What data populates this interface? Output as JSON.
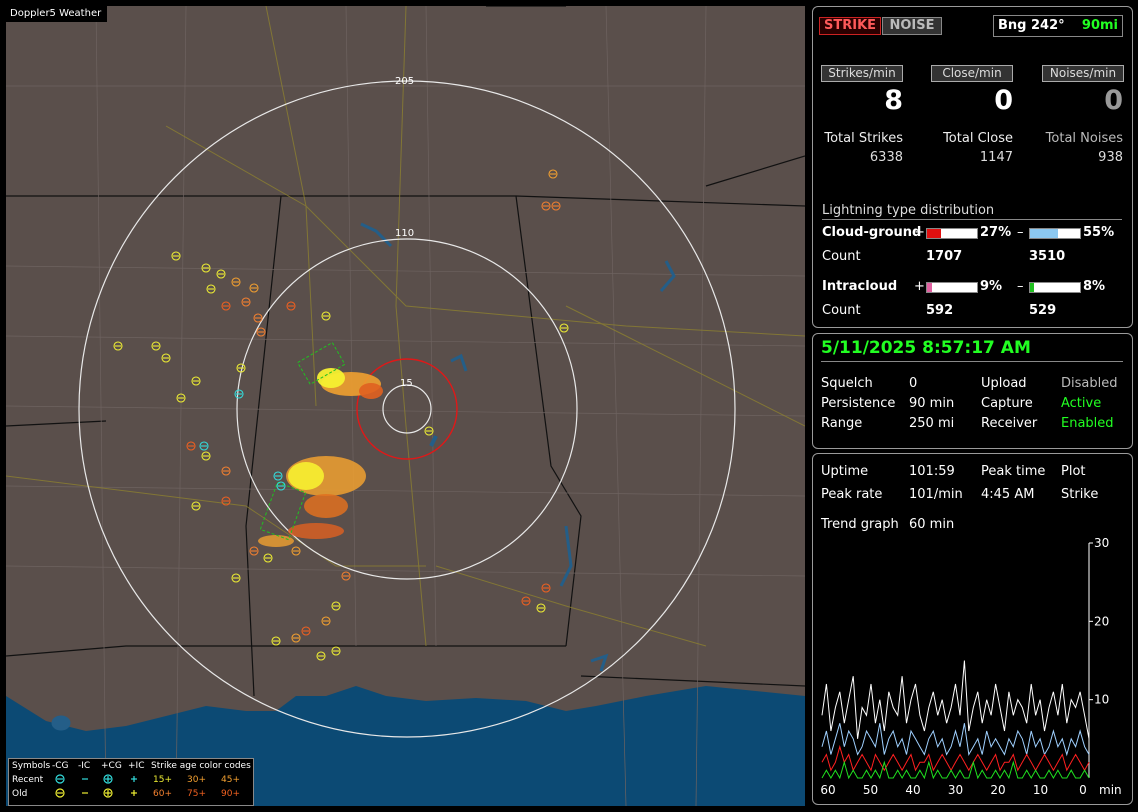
{
  "app": {
    "title": "Doppler5 Weather"
  },
  "map": {
    "range_labels": [
      "205",
      "110",
      "15"
    ],
    "legend": {
      "symbols_label": "Symbols",
      "headers": [
        "-CG",
        "-IC",
        "+CG",
        "+IC"
      ],
      "age_title": "Strike age color codes",
      "rows": [
        {
          "label": "Recent",
          "ages": [
            "15+",
            "30+",
            "45+"
          ]
        },
        {
          "label": "Old",
          "ages": [
            "60+",
            "75+",
            "90+"
          ]
        }
      ]
    }
  },
  "status": {
    "strike_button": "STRIKE",
    "noise_button": "NOISE",
    "bearing": "Bng 242°",
    "distance": "90mi",
    "rates": [
      {
        "label": "Strikes/min",
        "value": "8"
      },
      {
        "label": "Close/min",
        "value": "0"
      },
      {
        "label": "Noises/min",
        "value": "0"
      }
    ],
    "totals": [
      {
        "label": "Total Strikes",
        "value": "6338"
      },
      {
        "label": "Total Close",
        "value": "1147"
      },
      {
        "label": "Total Noises",
        "value": "938"
      }
    ],
    "distribution": {
      "title": "Lightning type distribution",
      "count_label": "Count",
      "cloud_ground": {
        "label": "Cloud-ground",
        "pos_pct": "27%",
        "neg_pct": "55%",
        "pos_count": "1707",
        "neg_count": "3510",
        "pos_fraction": 0.27,
        "neg_fraction": 0.55
      },
      "intracloud": {
        "label": "Intracloud",
        "pos_pct": "9%",
        "neg_pct": "8%",
        "pos_count": "592",
        "neg_count": "529",
        "pos_fraction": 0.09,
        "neg_fraction": 0.08
      }
    }
  },
  "settings": {
    "datetime": "5/11/2025 8:57:17 AM",
    "rows": [
      {
        "label": "Squelch",
        "value": "0",
        "label2": "Upload",
        "value2": "Disabled"
      },
      {
        "label": "Persistence",
        "value": "90 min",
        "label2": "Capture",
        "value2": "Active"
      },
      {
        "label": "Range",
        "value": "250 mi",
        "label2": "Receiver",
        "value2": "Enabled"
      }
    ]
  },
  "stats": {
    "uptime_label": "Uptime",
    "uptime": "101:59",
    "peak_time_label": "Peak time",
    "peak_time": "4:45 AM",
    "plot_label": "Plot",
    "plot": "Strike",
    "peak_rate_label": "Peak rate",
    "peak_rate": "101/min",
    "trend_label": "Trend graph",
    "trend": "60 min"
  },
  "chart_data": {
    "type": "line",
    "x_ticks": [
      "60",
      "50",
      "40",
      "30",
      "20",
      "10",
      "0"
    ],
    "x_unit": "min",
    "y_ticks": [
      "30",
      "20",
      "10"
    ],
    "ylim": [
      0,
      30
    ],
    "series": [
      {
        "color": "#ffffff",
        "values": [
          8,
          12,
          6,
          9,
          11,
          7,
          10,
          13,
          5,
          9,
          8,
          12,
          7,
          10,
          6,
          11,
          9,
          8,
          13,
          7,
          10,
          12,
          8,
          6,
          9,
          11,
          8,
          10,
          7,
          9,
          12,
          8,
          15,
          6,
          9,
          11,
          7,
          10,
          8,
          12,
          9,
          6,
          11,
          8,
          10,
          9,
          7,
          12,
          8,
          10,
          6,
          9,
          11,
          8,
          12,
          7,
          10,
          9,
          11,
          8,
          5
        ]
      },
      {
        "color": "#9fd0ff",
        "values": [
          4,
          6,
          3,
          5,
          7,
          4,
          6,
          5,
          3,
          4,
          6,
          5,
          4,
          7,
          3,
          5,
          6,
          4,
          5,
          3,
          6,
          5,
          4,
          3,
          5,
          6,
          4,
          5,
          3,
          4,
          6,
          4,
          7,
          3,
          4,
          5,
          3,
          6,
          4,
          5,
          4,
          3,
          5,
          4,
          6,
          5,
          3,
          6,
          4,
          5,
          3,
          4,
          6,
          4,
          5,
          3,
          5,
          4,
          6,
          4,
          3
        ]
      },
      {
        "color": "#ff2020",
        "values": [
          2,
          3,
          1,
          2,
          4,
          2,
          3,
          1,
          2,
          3,
          2,
          1,
          3,
          2,
          1,
          2,
          3,
          2,
          1,
          2,
          3,
          1,
          2,
          2,
          3,
          1,
          2,
          3,
          2,
          1,
          2,
          3,
          2,
          1,
          2,
          3,
          2,
          1,
          2,
          3,
          1,
          2,
          2,
          3,
          1,
          2,
          3,
          2,
          1,
          2,
          3,
          2,
          1,
          2,
          3,
          1,
          2,
          3,
          2,
          1,
          2
        ]
      },
      {
        "color": "#20e020",
        "values": [
          0,
          1,
          0,
          1,
          0,
          2,
          0,
          1,
          0,
          0,
          1,
          0,
          1,
          0,
          2,
          0,
          0,
          1,
          0,
          1,
          0,
          0,
          1,
          0,
          2,
          0,
          1,
          0,
          0,
          1,
          0,
          1,
          0,
          0,
          2,
          0,
          1,
          0,
          0,
          1,
          0,
          1,
          0,
          2,
          0,
          0,
          1,
          0,
          1,
          0,
          0,
          1,
          0,
          1,
          0,
          0,
          1,
          0,
          0,
          1,
          0
        ]
      }
    ]
  }
}
